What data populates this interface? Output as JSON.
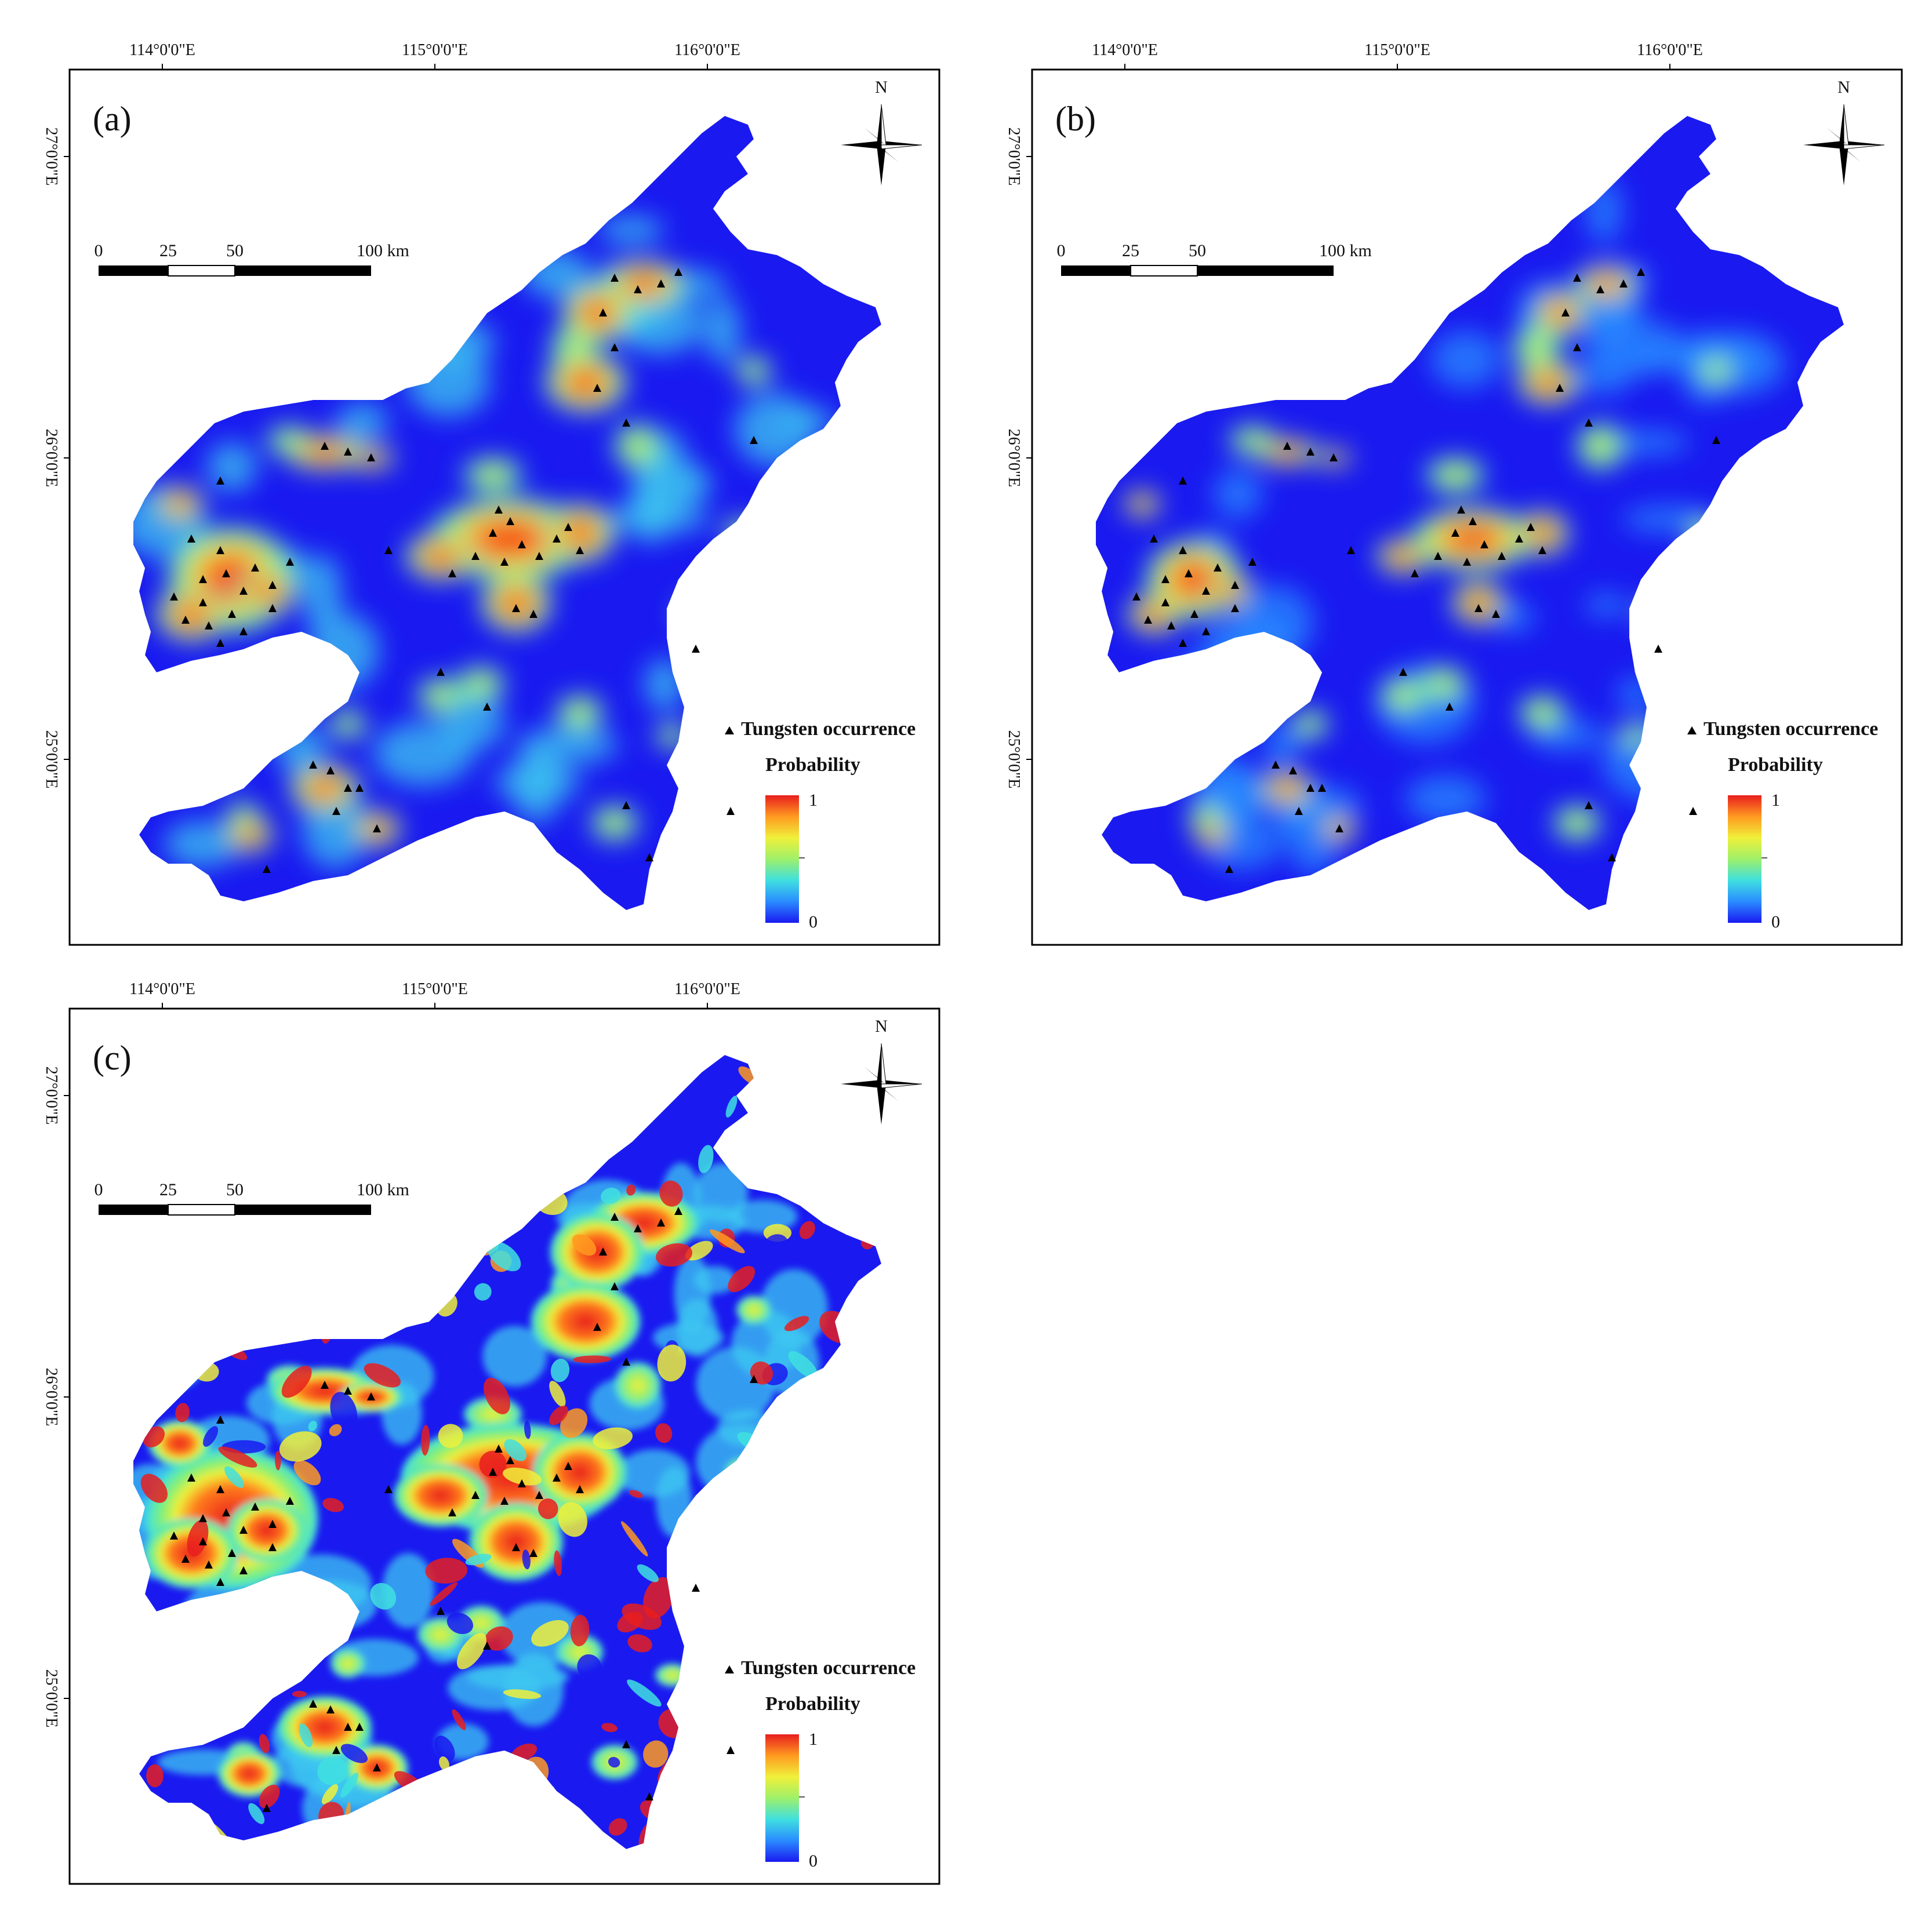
{
  "panels": [
    {
      "id": "a",
      "label": "(a)",
      "style": "smooth"
    },
    {
      "id": "b",
      "label": "(b)",
      "style": "smooth-cool"
    },
    {
      "id": "c",
      "label": "(c)",
      "style": "noisy"
    }
  ],
  "axes": {
    "longitude_ticks": [
      "114°0'0\"E",
      "115°0'0\"E",
      "116°0'0\"E"
    ],
    "latitude_ticks": [
      "27°0'0\"E",
      "26°0'0\"E",
      "25°0'0\"E"
    ]
  },
  "north_arrow": {
    "label": "N"
  },
  "scale_bar": {
    "labels": [
      "0",
      "25",
      "50",
      "100 km"
    ]
  },
  "legend": {
    "occurrence_label": "Tungsten occurrence",
    "probability_title": "Probability",
    "max_label": "1",
    "min_label": "0",
    "colormap": [
      "#1a1af0",
      "#2a8cff",
      "#3fe0e0",
      "#9ef06a",
      "#f0f03a",
      "#ff9a20",
      "#e81e1e"
    ]
  }
}
